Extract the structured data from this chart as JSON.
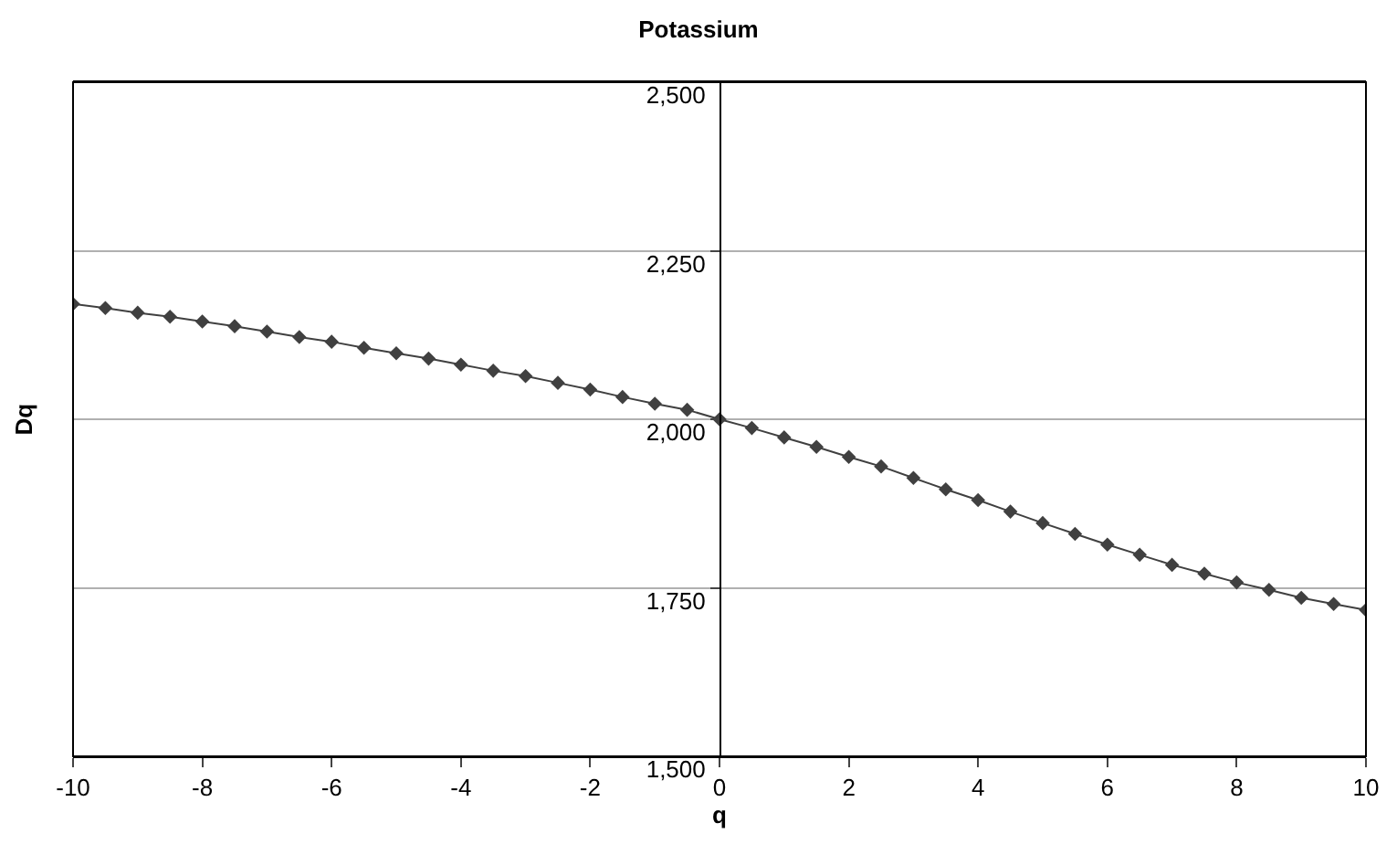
{
  "chart_data": {
    "type": "line",
    "title": "Potassium",
    "xlabel": "q",
    "ylabel": "Dq",
    "x": [
      -10,
      -9.5,
      -9,
      -8.5,
      -8,
      -7.5,
      -7,
      -6.5,
      -6,
      -5.5,
      -5,
      -4.5,
      -4,
      -3.5,
      -3,
      -2.5,
      -2,
      -1.5,
      -1,
      -0.5,
      0,
      0.5,
      1,
      1.5,
      2,
      2.5,
      3,
      3.5,
      4,
      4.5,
      5,
      5.5,
      6,
      6.5,
      7,
      7.5,
      8,
      8.5,
      9,
      9.5,
      10
    ],
    "series": [
      {
        "color": "#404040",
        "values": [
          2171,
          2165,
          2158,
          2152,
          2145,
          2138,
          2130,
          2122,
          2115,
          2106,
          2098,
          2090,
          2081,
          2072,
          2064,
          2054,
          2044,
          2033,
          2023,
          2014,
          2000,
          1987,
          1973,
          1959,
          1944,
          1930,
          1913,
          1896,
          1880,
          1863,
          1846,
          1830,
          1814,
          1799,
          1784,
          1771,
          1758,
          1747,
          1735,
          1726,
          1717
        ]
      }
    ],
    "xlim": [
      -10,
      10
    ],
    "xticks": [
      -10,
      -8,
      -6,
      -4,
      -2,
      0,
      2,
      4,
      6,
      8,
      10
    ],
    "ylim": [
      1500,
      2500
    ],
    "yticks": [
      {
        "value": 1500,
        "label": "1,500"
      },
      {
        "value": 1750,
        "label": "1,750"
      },
      {
        "value": 2000,
        "label": "2,000"
      },
      {
        "value": 2250,
        "label": "2,250"
      },
      {
        "value": 2500,
        "label": "2,500"
      }
    ],
    "grid": "y",
    "marker": "diamond",
    "line_style": "solid"
  }
}
